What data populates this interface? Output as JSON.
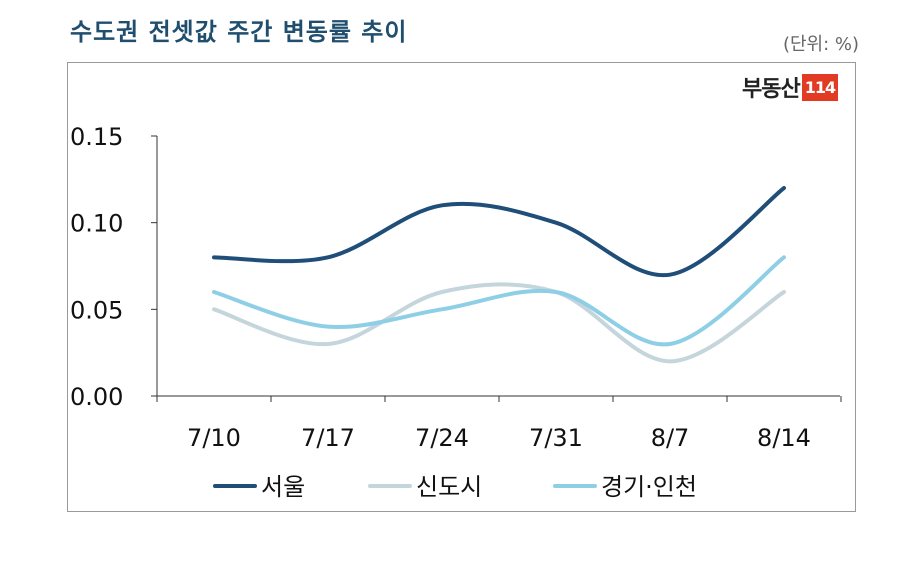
{
  "header": {
    "title": "수도권 전셋값 주간 변동률 추이",
    "unit": "(단위: %)"
  },
  "logo": {
    "text": "부동산",
    "box": "114"
  },
  "chart_data": {
    "type": "line",
    "categories": [
      "7/10",
      "7/17",
      "7/24",
      "7/31",
      "8/7",
      "8/14"
    ],
    "ylim": [
      0,
      0.15
    ],
    "yticks": [
      "0.00",
      "0.05",
      "0.10",
      "0.15"
    ],
    "grid": false,
    "legend_position": "bottom",
    "series": [
      {
        "name": "서울",
        "color": "#1f4e79",
        "values": [
          0.08,
          0.08,
          0.11,
          0.1,
          0.07,
          0.12
        ]
      },
      {
        "name": "신도시",
        "color": "#c5d5dc",
        "values": [
          0.05,
          0.03,
          0.06,
          0.06,
          0.02,
          0.06
        ]
      },
      {
        "name": "경기·인천",
        "color": "#8ecfe6",
        "values": [
          0.06,
          0.04,
          0.05,
          0.06,
          0.03,
          0.08
        ]
      }
    ]
  }
}
